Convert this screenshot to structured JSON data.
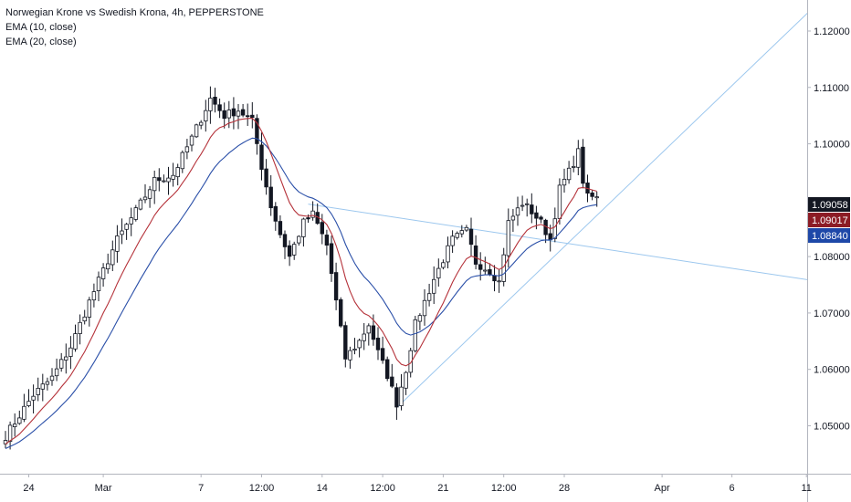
{
  "header": {
    "title": "Norwegian Krone vs Swedish Krona, 4h, PEPPERSTONE",
    "indicators": [
      "EMA (10, close)",
      "EMA (20, close)"
    ]
  },
  "colors": {
    "candle": "#131722",
    "candle_up_fill": "#ffffff",
    "ema10": "#b5323a",
    "ema20": "#2a4fa8",
    "trendline": "#9cc7ee",
    "badge_last": "#131722",
    "badge_ema10": "#8c1c25",
    "badge_ema20": "#1e48a8"
  },
  "price_badges": [
    {
      "label": "1.09058",
      "series": "last",
      "value": 1.09058
    },
    {
      "label": "1.09017",
      "series": "ema10",
      "value": 1.09017
    },
    {
      "label": "1.08840",
      "series": "ema20",
      "value": 1.0884
    }
  ],
  "chart_data": {
    "type": "candlestick",
    "symbol": "Norwegian Krone vs Swedish Krona",
    "timeframe": "4h",
    "source": "PEPPERSTONE",
    "y_ticks": [
      "1.12000",
      "1.11000",
      "1.10000",
      "1.09000",
      "1.08000",
      "1.07000",
      "1.06000",
      "1.05000"
    ],
    "y_tick_values": [
      1.12,
      1.11,
      1.1,
      1.09,
      1.08,
      1.07,
      1.06,
      1.05
    ],
    "ylim": [
      1.0415,
      1.1255
    ],
    "x_ticks": [
      {
        "label": "24",
        "bar": 5
      },
      {
        "label": "Mar",
        "bar": 21
      },
      {
        "label": "7",
        "bar": 42
      },
      {
        "label": "12:00",
        "bar": 55
      },
      {
        "label": "14",
        "bar": 68
      },
      {
        "label": "12:00",
        "bar": 81
      },
      {
        "label": "21",
        "bar": 94
      },
      {
        "label": "12:00",
        "bar": 107
      },
      {
        "label": "28",
        "bar": 120
      },
      {
        "label": "Apr",
        "bar": 141
      },
      {
        "label": "6",
        "bar": 156
      },
      {
        "label": "11",
        "bar": 172
      }
    ],
    "anchors": [
      [
        0,
        1.0482
      ],
      [
        6,
        1.0555
      ],
      [
        10,
        1.0585
      ],
      [
        14,
        1.064
      ],
      [
        18,
        1.072
      ],
      [
        24,
        1.083
      ],
      [
        28,
        1.088
      ],
      [
        32,
        1.0935
      ],
      [
        36,
        1.0945
      ],
      [
        40,
        1.101
      ],
      [
        44,
        1.108
      ],
      [
        47,
        1.105
      ],
      [
        50,
        1.106
      ],
      [
        53,
        1.104
      ],
      [
        55,
        1.096
      ],
      [
        57,
        1.089
      ],
      [
        59,
        1.084
      ],
      [
        61,
        1.08
      ],
      [
        64,
        1.086
      ],
      [
        66,
        1.0875
      ],
      [
        69,
        1.082
      ],
      [
        71,
        1.072
      ],
      [
        73,
        1.062
      ],
      [
        76,
        1.065
      ],
      [
        78,
        1.068
      ],
      [
        80,
        1.063
      ],
      [
        82,
        1.059
      ],
      [
        84,
        1.054
      ],
      [
        86,
        1.06
      ],
      [
        88,
        1.068
      ],
      [
        92,
        1.076
      ],
      [
        96,
        1.083
      ],
      [
        99,
        1.0845
      ],
      [
        101,
        1.079
      ],
      [
        104,
        1.0775
      ],
      [
        106,
        1.0755
      ],
      [
        108,
        1.086
      ],
      [
        111,
        1.0895
      ],
      [
        113,
        1.088
      ],
      [
        115,
        1.086
      ],
      [
        117,
        1.083
      ],
      [
        119,
        1.092
      ],
      [
        121,
        1.095
      ],
      [
        123,
        1.0985
      ],
      [
        124,
        1.0935
      ],
      [
        125,
        1.0905
      ],
      [
        127,
        1.0906
      ]
    ],
    "trendlines": [
      {
        "from": {
          "bar": 84,
          "price": 1.0532
        },
        "to": {
          "bar": 173,
          "price": 1.1238
        }
      },
      {
        "from": {
          "bar": 65,
          "price": 1.0893
        },
        "to": {
          "bar": 173,
          "price": 1.0758
        }
      }
    ],
    "series": [
      {
        "name": "EMA (10, close)",
        "period": 10
      },
      {
        "name": "EMA (20, close)",
        "period": 20
      }
    ]
  }
}
